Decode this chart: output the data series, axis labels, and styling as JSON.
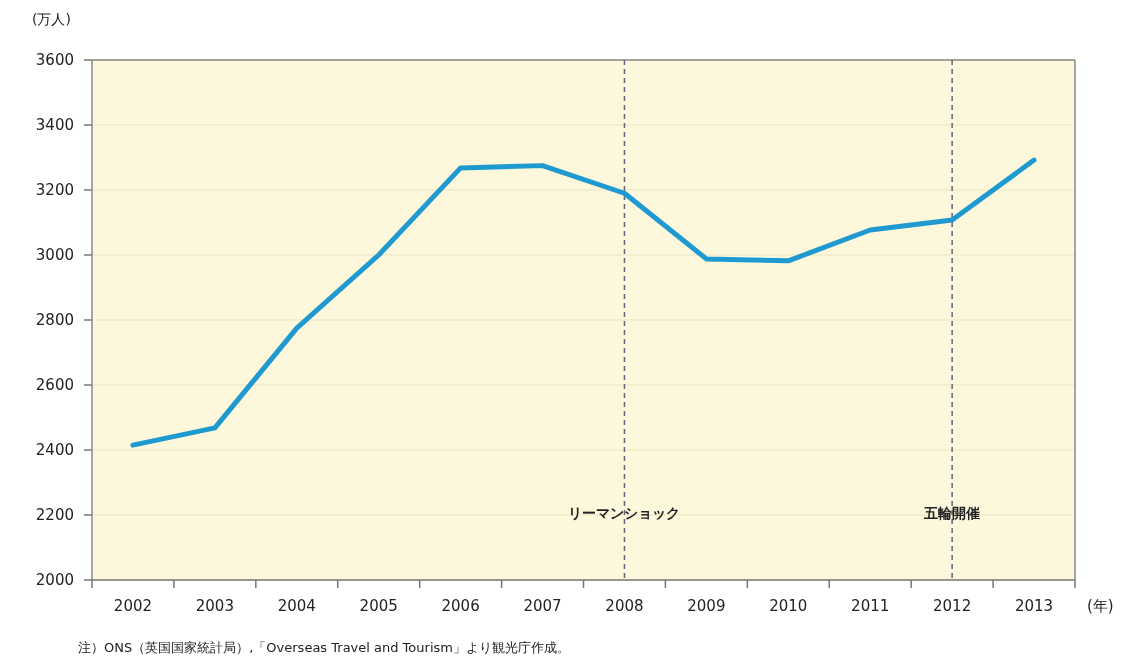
{
  "chart_data": {
    "type": "line",
    "ylabel": "(万人)",
    "xlabel": "(年)",
    "categories": [
      "2002",
      "2003",
      "2004",
      "2005",
      "2006",
      "2007",
      "2008",
      "2009",
      "2010",
      "2011",
      "2012",
      "2013"
    ],
    "series": [
      {
        "color": "#1f9ad0",
        "values": [
          2415,
          2468,
          2775,
          3000,
          3268,
          3275,
          3190,
          2988,
          2982,
          3077,
          3108,
          3292
        ]
      }
    ],
    "ylim": [
      2000,
      3600
    ],
    "yticks": [
      2000,
      2200,
      2400,
      2600,
      2800,
      3000,
      3200,
      3400,
      3600
    ],
    "grid": "y",
    "marker": "none",
    "line_style": "solid",
    "ref_lines": [
      {
        "axis": "x",
        "value": "2008",
        "label": "リーマンショック",
        "color": "#666677",
        "line_style": "dashed"
      },
      {
        "axis": "x",
        "value": "2012",
        "label": "五輪開催",
        "color": "#666677",
        "line_style": "dashed"
      }
    ],
    "annotations": [
      "注）ONS（英国国家統計局）,「Overseas Travel and Tourism」より観光庁作成。"
    ]
  }
}
